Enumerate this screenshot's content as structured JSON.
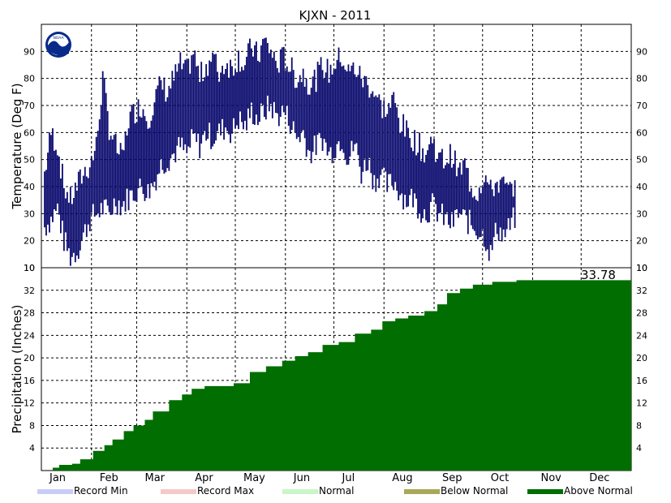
{
  "title": "KJXN - 2011",
  "months": [
    "Jan",
    "Feb",
    "Mar",
    "Apr",
    "May",
    "Jun",
    "Jul",
    "Aug",
    "Sep",
    "Oct",
    "Nov",
    "Dec"
  ],
  "legend": [
    {
      "label": "Record Min",
      "color": "#c8ccf6"
    },
    {
      "label": "Record Max",
      "color": "#f6c8c8"
    },
    {
      "label": "Normal",
      "color": "#c8f6c8"
    },
    {
      "label": "Below Normal",
      "color": "#a8a858"
    },
    {
      "label": "Above Normal",
      "color": "#006e00"
    }
  ],
  "logo_text": "NOAA",
  "chart_data": [
    {
      "type": "bar",
      "ylabel": "Temperature (Deg F)",
      "ylim": [
        10,
        100
      ],
      "yticks": [
        10,
        20,
        30,
        40,
        50,
        60,
        70,
        80,
        90
      ],
      "grid": true,
      "color": "#0a0a6e",
      "note": "Daily high/low range bars; values approximate weekly samples (day of year, low, high)",
      "series": [
        {
          "day": 3,
          "low": 25,
          "high": 45
        },
        {
          "day": 7,
          "low": 28,
          "high": 60
        },
        {
          "day": 11,
          "low": 32,
          "high": 55
        },
        {
          "day": 15,
          "low": 20,
          "high": 40
        },
        {
          "day": 19,
          "low": 14,
          "high": 35
        },
        {
          "day": 23,
          "low": 16,
          "high": 40
        },
        {
          "day": 27,
          "low": 22,
          "high": 45
        },
        {
          "day": 31,
          "low": 28,
          "high": 48
        },
        {
          "day": 35,
          "low": 30,
          "high": 55
        },
        {
          "day": 39,
          "low": 32,
          "high": 80
        },
        {
          "day": 43,
          "low": 30,
          "high": 62
        },
        {
          "day": 47,
          "low": 35,
          "high": 55
        },
        {
          "day": 51,
          "low": 33,
          "high": 50
        },
        {
          "day": 55,
          "low": 36,
          "high": 65
        },
        {
          "day": 59,
          "low": 38,
          "high": 68
        },
        {
          "day": 63,
          "low": 40,
          "high": 70
        },
        {
          "day": 67,
          "low": 38,
          "high": 65
        },
        {
          "day": 71,
          "low": 42,
          "high": 72
        },
        {
          "day": 75,
          "low": 48,
          "high": 78
        },
        {
          "day": 79,
          "low": 50,
          "high": 75
        },
        {
          "day": 83,
          "low": 52,
          "high": 80
        },
        {
          "day": 87,
          "low": 55,
          "high": 85
        },
        {
          "day": 91,
          "low": 52,
          "high": 82
        },
        {
          "day": 95,
          "low": 58,
          "high": 90
        },
        {
          "day": 99,
          "low": 55,
          "high": 80
        },
        {
          "day": 103,
          "low": 60,
          "high": 85
        },
        {
          "day": 107,
          "low": 58,
          "high": 88
        },
        {
          "day": 111,
          "low": 60,
          "high": 82
        },
        {
          "day": 115,
          "low": 62,
          "high": 86
        },
        {
          "day": 119,
          "low": 60,
          "high": 84
        },
        {
          "day": 123,
          "low": 65,
          "high": 88
        },
        {
          "day": 127,
          "low": 62,
          "high": 85
        },
        {
          "day": 131,
          "low": 68,
          "high": 92
        },
        {
          "day": 135,
          "low": 65,
          "high": 88
        },
        {
          "day": 139,
          "low": 68,
          "high": 94
        },
        {
          "day": 143,
          "low": 70,
          "high": 90
        },
        {
          "day": 147,
          "low": 66,
          "high": 85
        },
        {
          "day": 151,
          "low": 68,
          "high": 88
        },
        {
          "day": 155,
          "low": 64,
          "high": 84
        },
        {
          "day": 159,
          "low": 58,
          "high": 80
        },
        {
          "day": 163,
          "low": 60,
          "high": 82
        },
        {
          "day": 167,
          "low": 52,
          "high": 78
        },
        {
          "day": 171,
          "low": 55,
          "high": 80
        },
        {
          "day": 175,
          "low": 58,
          "high": 85
        },
        {
          "day": 179,
          "low": 52,
          "high": 82
        },
        {
          "day": 183,
          "low": 55,
          "high": 86
        },
        {
          "day": 187,
          "low": 58,
          "high": 88
        },
        {
          "day": 191,
          "low": 50,
          "high": 82
        },
        {
          "day": 195,
          "low": 56,
          "high": 84
        },
        {
          "day": 199,
          "low": 45,
          "high": 80
        },
        {
          "day": 203,
          "low": 50,
          "high": 78
        },
        {
          "day": 207,
          "low": 42,
          "high": 75
        },
        {
          "day": 211,
          "low": 45,
          "high": 70
        },
        {
          "day": 215,
          "low": 40,
          "high": 68
        },
        {
          "day": 219,
          "low": 42,
          "high": 72
        },
        {
          "day": 223,
          "low": 38,
          "high": 64
        },
        {
          "day": 227,
          "low": 35,
          "high": 60
        },
        {
          "day": 231,
          "low": 36,
          "high": 58
        },
        {
          "day": 235,
          "low": 32,
          "high": 55
        },
        {
          "day": 239,
          "low": 30,
          "high": 52
        },
        {
          "day": 243,
          "low": 33,
          "high": 58
        },
        {
          "day": 247,
          "low": 30,
          "high": 50
        },
        {
          "day": 251,
          "low": 28,
          "high": 50
        },
        {
          "day": 255,
          "low": 26,
          "high": 52
        },
        {
          "day": 259,
          "low": 30,
          "high": 45
        },
        {
          "day": 263,
          "low": 28,
          "high": 48
        },
        {
          "day": 267,
          "low": 26,
          "high": 40
        },
        {
          "day": 271,
          "low": 24,
          "high": 38
        },
        {
          "day": 275,
          "low": 22,
          "high": 45
        },
        {
          "day": 279,
          "low": 15,
          "high": 38
        },
        {
          "day": 283,
          "low": 25,
          "high": 42
        },
        {
          "day": 287,
          "low": 22,
          "high": 40
        },
        {
          "day": 291,
          "low": 25,
          "high": 38
        },
        {
          "day": 295,
          "low": 30,
          "high": 42
        }
      ]
    },
    {
      "type": "area",
      "ylabel": "Precipitation (Inches)",
      "ylim": [
        0,
        36
      ],
      "yticks": [
        4,
        8,
        12,
        16,
        20,
        24,
        28,
        32
      ],
      "grid": true,
      "color": "#006e00",
      "final_total_label": "33.78",
      "note": "Cumulative precipitation by day of year (approximate)",
      "x": [
        1,
        8,
        12,
        20,
        25,
        33,
        40,
        45,
        52,
        58,
        65,
        70,
        80,
        88,
        94,
        102,
        110,
        120,
        130,
        140,
        150,
        158,
        166,
        175,
        185,
        195,
        205,
        212,
        220,
        228,
        238,
        246,
        252,
        260,
        268,
        280,
        295,
        320,
        365
      ],
      "y": [
        0,
        0.5,
        1,
        1.2,
        2,
        3.5,
        4.5,
        5.5,
        7,
        8,
        9,
        10.5,
        12.5,
        13.5,
        14.5,
        15,
        15,
        15.5,
        17.5,
        18.5,
        19.5,
        20.3,
        21,
        22.3,
        22.8,
        24.3,
        25,
        26.5,
        27,
        27.5,
        28.3,
        29.5,
        31.5,
        32.3,
        33,
        33.5,
        33.78,
        33.78,
        33.78
      ]
    }
  ]
}
